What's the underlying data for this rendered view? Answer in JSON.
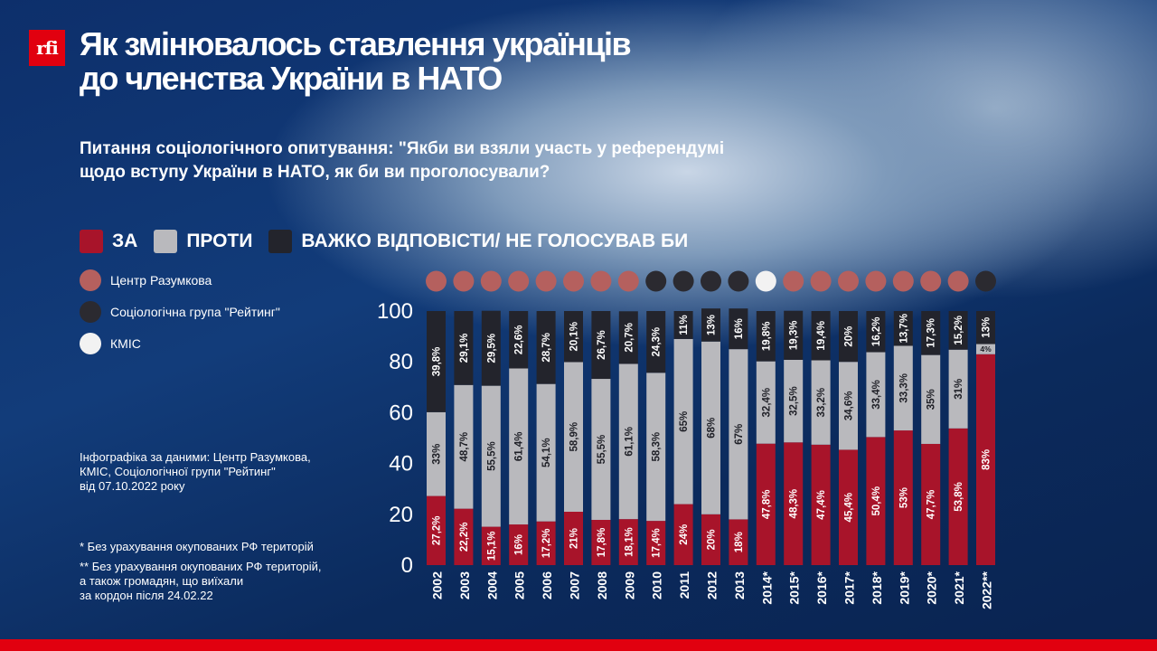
{
  "logo_text": "rfi",
  "title_lines": [
    "Як змінювалось ставлення українців",
    "до членства України в НАТО"
  ],
  "question_lines": [
    "Питання соціологічного опитування: \"Якби ви взяли участь у референдумі",
    "щодо вступу України в НАТО, як би ви проголосували?"
  ],
  "legend": [
    {
      "label": "ЗА",
      "color": "#a8142a"
    },
    {
      "label": "ПРОТИ",
      "color": "#b9b9bd"
    },
    {
      "label": "ВАЖКО ВІДПОВІСТИ/ НЕ ГОЛОСУВАВ БИ",
      "color": "#23242c"
    }
  ],
  "sources": [
    {
      "label": "Центр Разумкова",
      "color": "#b5605e"
    },
    {
      "label": "Соціологічна група \"Рейтинг\"",
      "color": "#2b2a30"
    },
    {
      "label": "КМІС",
      "color": "#f2f2f2"
    }
  ],
  "info_lines": [
    "Інфографіка за даними: Центр Разумкова,",
    "КМІС, Соціологічної групи \"Рейтинг\"",
    "від 07.10.2022 року"
  ],
  "footnote1": "* Без урахування окупованих РФ територій",
  "footnote2_lines": [
    "** Без урахування окупованих РФ територій,",
    "а також громадян, що виїхали",
    "за кордон після 24.02.22"
  ],
  "chart_data": {
    "type": "bar",
    "stacked": true,
    "title": "Як змінювалось ставлення українців до членства України в НАТО",
    "ylim": [
      0,
      100
    ],
    "yticks": [
      0,
      20,
      40,
      60,
      80,
      100
    ],
    "categories": [
      "2002",
      "2003",
      "2004",
      "2005",
      "2006",
      "2007",
      "2008",
      "2009",
      "2010",
      "2011",
      "2012",
      "2013",
      "2014*",
      "2015*",
      "2016*",
      "2017*",
      "2018*",
      "2019*",
      "2020*",
      "2021*",
      "2022**"
    ],
    "source_colors": [
      "#b5605e",
      "#b5605e",
      "#b5605e",
      "#b5605e",
      "#b5605e",
      "#b5605e",
      "#b5605e",
      "#b5605e",
      "#2b2a30",
      "#2b2a30",
      "#2b2a30",
      "#2b2a30",
      "#f2f2f2",
      "#b5605e",
      "#b5605e",
      "#b5605e",
      "#b5605e",
      "#b5605e",
      "#b5605e",
      "#b5605e",
      "#2b2a30"
    ],
    "series": [
      {
        "name": "ЗА",
        "color": "#a8142a",
        "values": [
          27.2,
          22.2,
          15.1,
          16,
          17.2,
          21,
          17.8,
          18.1,
          17.4,
          24,
          20,
          18,
          47.8,
          48.3,
          47.4,
          45.4,
          50.4,
          53,
          47.7,
          53.8,
          83
        ],
        "labels": [
          "27,2%",
          "22,2%",
          "15,1%",
          "16%",
          "17,2%",
          "21%",
          "17,8%",
          "18,1%",
          "17,4%",
          "24%",
          "20%",
          "18%",
          "47,8%",
          "48,3%",
          "47,4%",
          "45,4%",
          "50,4%",
          "53%",
          "47,7%",
          "53,8%",
          "83%"
        ]
      },
      {
        "name": "ПРОТИ",
        "color": "#b9b9bd",
        "values": [
          33,
          48.7,
          55.5,
          61.4,
          54.1,
          58.9,
          55.5,
          61.1,
          58.3,
          65,
          68,
          67,
          32.4,
          32.5,
          33.2,
          34.6,
          33.4,
          33.3,
          35,
          31,
          4
        ],
        "labels": [
          "33%",
          "48,7%",
          "55,5%",
          "61,4%",
          "54,1%",
          "58,9%",
          "55,5%",
          "61,1%",
          "58,3%",
          "65%",
          "68%",
          "67%",
          "32,4%",
          "32,5%",
          "33,2%",
          "34,6%",
          "33,4%",
          "33,3%",
          "35%",
          "31%",
          "4%"
        ]
      },
      {
        "name": "ВАЖКО ВІДПОВІСТИ/ НЕ ГОЛОСУВАВ БИ",
        "color": "#23242c",
        "values": [
          39.8,
          29.1,
          29.5,
          22.6,
          28.7,
          20.1,
          26.7,
          20.7,
          24.3,
          11,
          13,
          16,
          19.8,
          19.3,
          19.4,
          20,
          16.2,
          13.7,
          17.3,
          15.2,
          13
        ],
        "labels": [
          "39,8%",
          "29,1%",
          "29,5%",
          "22,6%",
          "28,7%",
          "20,1%",
          "26,7%",
          "20,7%",
          "24,3%",
          "11%",
          "13%",
          "16%",
          "19,8%",
          "19,3%",
          "19,4%",
          "20%",
          "16,2%",
          "13,7%",
          "17,3%",
          "15,2%",
          "13%"
        ]
      }
    ]
  }
}
